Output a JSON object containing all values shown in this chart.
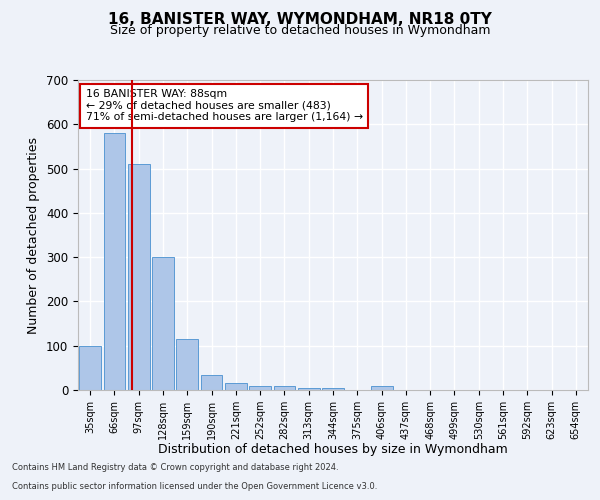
{
  "title": "16, BANISTER WAY, WYMONDHAM, NR18 0TY",
  "subtitle": "Size of property relative to detached houses in Wymondham",
  "xlabel": "Distribution of detached houses by size in Wymondham",
  "ylabel": "Number of detached properties",
  "footer_line1": "Contains HM Land Registry data © Crown copyright and database right 2024.",
  "footer_line2": "Contains public sector information licensed under the Open Government Licence v3.0.",
  "categories": [
    "35sqm",
    "66sqm",
    "97sqm",
    "128sqm",
    "159sqm",
    "190sqm",
    "221sqm",
    "252sqm",
    "282sqm",
    "313sqm",
    "344sqm",
    "375sqm",
    "406sqm",
    "437sqm",
    "468sqm",
    "499sqm",
    "530sqm",
    "561sqm",
    "592sqm",
    "623sqm",
    "654sqm"
  ],
  "values": [
    100,
    580,
    510,
    300,
    115,
    35,
    15,
    8,
    8,
    5,
    5,
    0,
    8,
    0,
    0,
    0,
    0,
    0,
    0,
    0,
    0
  ],
  "bar_color": "#aec6e8",
  "bar_edge_color": "#5b9bd5",
  "annotation_text": "16 BANISTER WAY: 88sqm\n← 29% of detached houses are smaller (483)\n71% of semi-detached houses are larger (1,164) →",
  "annotation_box_color": "#ffffff",
  "annotation_box_edge_color": "#cc0000",
  "vline_color": "#cc0000",
  "ylim": [
    0,
    700
  ],
  "yticks": [
    0,
    100,
    200,
    300,
    400,
    500,
    600,
    700
  ],
  "bg_color": "#eef2f9",
  "plot_bg_color": "#eef2f9",
  "grid_color": "#ffffff",
  "title_fontsize": 11,
  "subtitle_fontsize": 9,
  "xlabel_fontsize": 9,
  "ylabel_fontsize": 9
}
